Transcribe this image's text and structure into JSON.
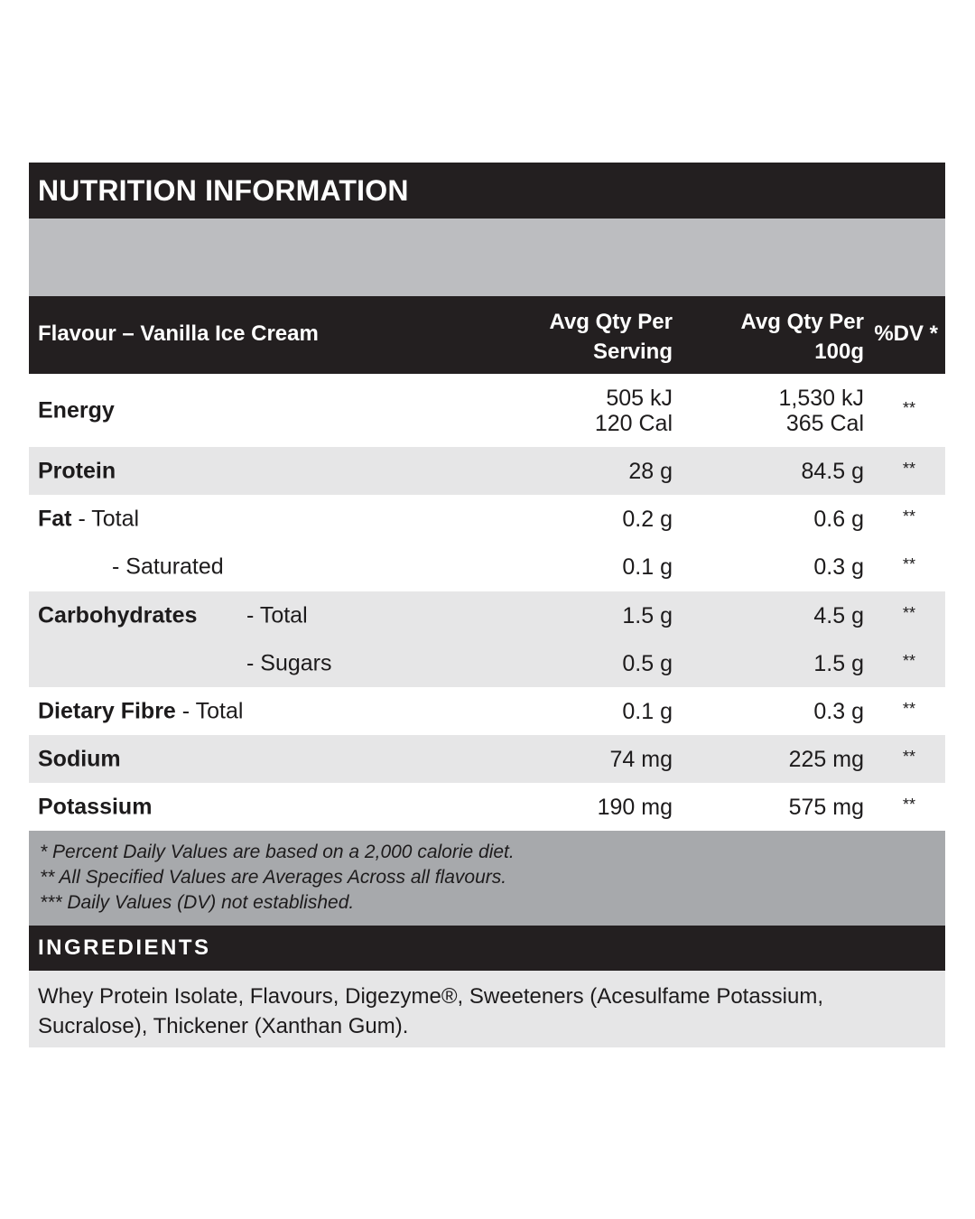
{
  "title": "NUTRITION INFORMATION",
  "header": {
    "flavour": "Flavour – Vanilla Ice Cream",
    "col1": "Avg Qty Per\nServing",
    "col2": "Avg Qty Per\n100g",
    "col3": "%DV *"
  },
  "rows": [
    {
      "label": "Energy",
      "sub": "",
      "per_serving": "505 kJ\n120 Cal",
      "per_100g": "1,530 kJ\n365 Cal",
      "dv": "**"
    },
    {
      "label": "Protein",
      "sub": "",
      "per_serving": "28 g",
      "per_100g": "84.5 g",
      "dv": "**"
    },
    {
      "label": "Fat",
      "sub": " - Total",
      "per_serving": "0.2 g",
      "per_100g": "0.6 g",
      "dv": "**"
    },
    {
      "label": "",
      "sub": "- Saturated",
      "per_serving": "0.1 g",
      "per_100g": "0.3 g",
      "dv": "**"
    },
    {
      "label": "Carbohydrates",
      "sub": "- Total",
      "per_serving": "1.5 g",
      "per_100g": "4.5 g",
      "dv": "**"
    },
    {
      "label": "",
      "sub": "- Sugars",
      "per_serving": "0.5 g",
      "per_100g": "1.5 g",
      "dv": "**"
    },
    {
      "label": "Dietary Fibre",
      "sub": " - Total",
      "per_serving": "0.1 g",
      "per_100g": "0.3 g",
      "dv": "**"
    },
    {
      "label": "Sodium",
      "sub": "",
      "per_serving": "74 mg",
      "per_100g": "225 mg",
      "dv": "**"
    },
    {
      "label": "Potassium",
      "sub": "",
      "per_serving": "190 mg",
      "per_100g": "575 mg",
      "dv": "**"
    }
  ],
  "footnotes": [
    "* Percent Daily Values are based on a 2,000 calorie diet.",
    "** All Specified Values are Averages Across all flavours.",
    "*** Daily Values (DV) not established."
  ],
  "ingredients_title": "INGREDIENTS",
  "ingredients": "Whey Protein Isolate, Flavours, Digezyme®, Sweeteners (Acesulfame Potassium, Sucralose), Thickener (Xanthan Gum)."
}
